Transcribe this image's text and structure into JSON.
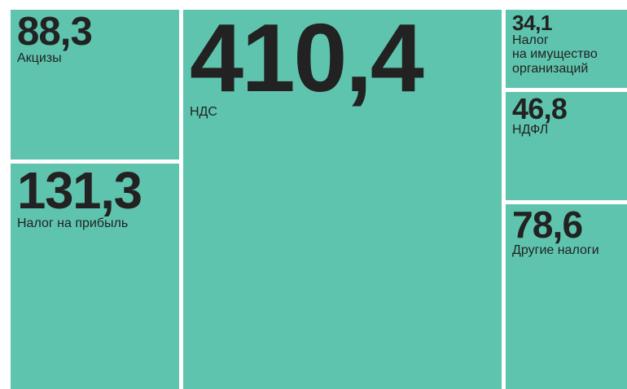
{
  "chart_data": {
    "type": "treemap",
    "color": "#5fc4ae",
    "categories": [
      "Акцизы",
      "Налог на прибыль",
      "НДС",
      "Налог\nна имущество\nорганизаций",
      "НДФЛ",
      "Другие налоги"
    ],
    "values": [
      88.3,
      131.3,
      410.4,
      34.1,
      46.8,
      78.6
    ],
    "value_labels": [
      "88,3",
      "131,3",
      "410,4",
      "34,1",
      "46,8",
      "78,6"
    ]
  }
}
